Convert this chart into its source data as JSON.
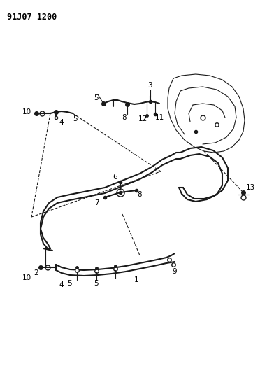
{
  "title": "91J07 1200",
  "background_color": "#ffffff",
  "line_color": "#1a1a1a",
  "label_color": "#000000",
  "fig_width": 3.92,
  "fig_height": 5.33,
  "dpi": 100
}
